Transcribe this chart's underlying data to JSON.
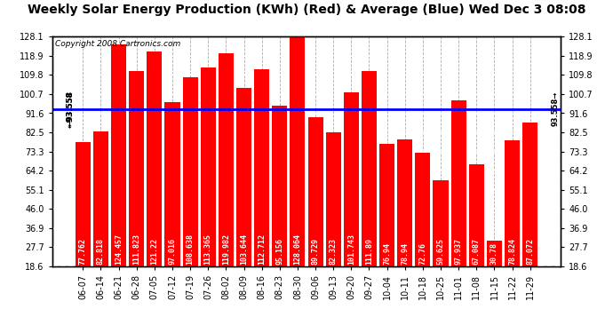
{
  "title": "Weekly Solar Energy Production (KWh) (Red) & Average (Blue) Wed Dec 3 08:08",
  "copyright": "Copyright 2008 Cartronics.com",
  "average": 93.558,
  "categories": [
    "06-07",
    "06-14",
    "06-21",
    "06-28",
    "07-05",
    "07-12",
    "07-19",
    "07-26",
    "08-02",
    "08-09",
    "08-16",
    "08-23",
    "08-30",
    "09-06",
    "09-13",
    "09-20",
    "09-27",
    "10-04",
    "10-11",
    "10-18",
    "10-25",
    "11-01",
    "11-08",
    "11-15",
    "11-22",
    "11-29"
  ],
  "values": [
    77.762,
    82.818,
    124.457,
    111.823,
    121.22,
    97.016,
    108.638,
    113.365,
    119.982,
    103.644,
    112.712,
    95.156,
    128.064,
    89.729,
    82.323,
    101.743,
    111.89,
    76.94,
    78.94,
    72.76,
    59.625,
    97.937,
    67.087,
    30.78,
    78.824,
    87.072
  ],
  "bar_color": "#ff0000",
  "avg_line_color": "#0000ff",
  "background_color": "#ffffff",
  "plot_bg_color": "#ffffff",
  "title_fontsize": 10,
  "bar_label_fontsize": 6.0,
  "ytick_labels": [
    18.6,
    27.7,
    36.9,
    46.0,
    55.1,
    64.2,
    73.3,
    82.5,
    91.6,
    100.7,
    109.8,
    118.9,
    128.1
  ],
  "ymin": 18.6,
  "ymax": 128.1
}
